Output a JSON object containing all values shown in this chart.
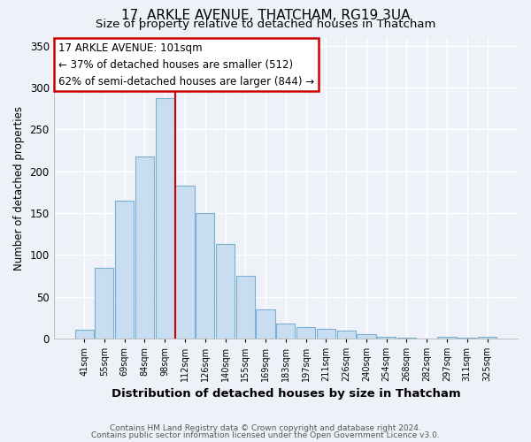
{
  "title1": "17, ARKLE AVENUE, THATCHAM, RG19 3UA",
  "title2": "Size of property relative to detached houses in Thatcham",
  "xlabel": "Distribution of detached houses by size in Thatcham",
  "ylabel": "Number of detached properties",
  "bar_labels": [
    "41sqm",
    "55sqm",
    "69sqm",
    "84sqm",
    "98sqm",
    "112sqm",
    "126sqm",
    "140sqm",
    "155sqm",
    "169sqm",
    "183sqm",
    "197sqm",
    "211sqm",
    "226sqm",
    "240sqm",
    "254sqm",
    "268sqm",
    "282sqm",
    "297sqm",
    "311sqm",
    "325sqm"
  ],
  "bar_values": [
    10,
    84,
    165,
    218,
    288,
    183,
    150,
    113,
    75,
    35,
    18,
    13,
    11,
    9,
    5,
    2,
    1,
    0,
    2,
    1,
    2
  ],
  "bar_color": "#c9ddf0",
  "bar_edge_color": "#7aafd4",
  "vline_x": 4.5,
  "vline_color": "#cc0000",
  "annotation_title": "17 ARKLE AVENUE: 101sqm",
  "annotation_line1": "← 37% of detached houses are smaller (512)",
  "annotation_line2": "62% of semi-detached houses are larger (844) →",
  "annotation_box_color": "#ffffff",
  "annotation_box_edge": "#cc0000",
  "ylim": [
    0,
    360
  ],
  "yticks": [
    0,
    50,
    100,
    150,
    200,
    250,
    300,
    350
  ],
  "footer1": "Contains HM Land Registry data © Crown copyright and database right 2024.",
  "footer2": "Contains public sector information licensed under the Open Government Licence v3.0.",
  "bg_color": "#eef2f8",
  "plot_bg_color": "#eef2f8",
  "grid_color": "#ffffff",
  "title1_fontsize": 11,
  "title2_fontsize": 9.5
}
